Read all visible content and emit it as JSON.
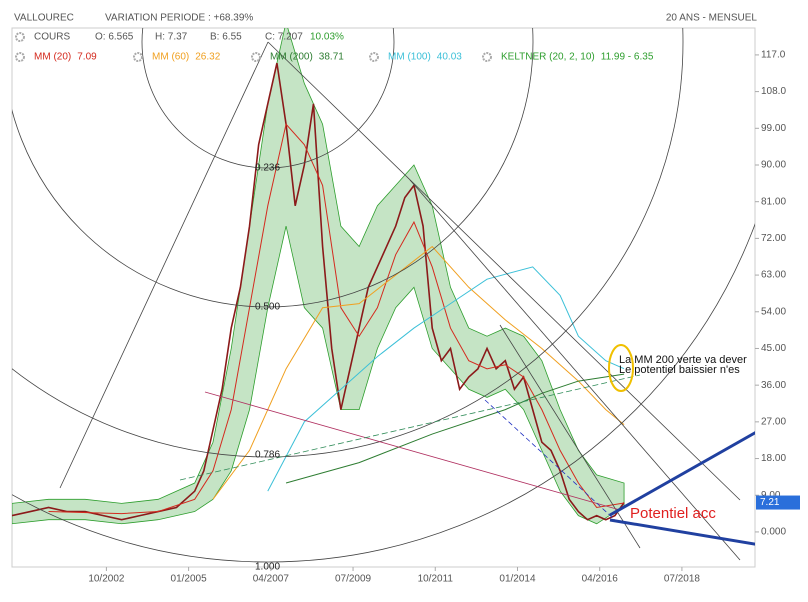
{
  "chart_data": {
    "type": "line",
    "title": "VALLOUREC",
    "subtitle": "VARIATION PERIODE : +68.39%",
    "period": "20 ANS - MENSUEL",
    "quote": [
      "O: 6.565",
      "H: 7.37",
      "B: 6.55",
      "C: 7.207",
      "10.03%"
    ],
    "fib_labels": [
      "0.236",
      "0.500",
      "0.786",
      "1.000"
    ],
    "annotations": [
      "La MM 200 verte va dever",
      "Le potentiel baissier n'es",
      "Potentiel acc"
    ],
    "xlim": [
      "03/2000",
      "07/2020"
    ],
    "xticks": [
      "10/2002",
      "01/2005",
      "04/2007",
      "07/2009",
      "10/2011",
      "01/2014",
      "04/2016",
      "07/2018"
    ],
    "ylim": [
      -8.6,
      123.6
    ],
    "yticks": [
      {
        "value": 0,
        "label": "0.000"
      },
      {
        "value": 9,
        "label": "9.00"
      },
      {
        "value": 18,
        "label": "18.00"
      },
      {
        "value": 27,
        "label": "27.00"
      },
      {
        "value": 36,
        "label": "36.00"
      },
      {
        "value": 45,
        "label": "45.00"
      },
      {
        "value": 54,
        "label": "54.00"
      },
      {
        "value": 63,
        "label": "63.00"
      },
      {
        "value": 72,
        "label": "72.00"
      },
      {
        "value": 81,
        "label": "81.00"
      },
      {
        "value": 90,
        "label": "90.00"
      },
      {
        "value": 99,
        "label": "99.00"
      },
      {
        "value": 108,
        "label": "108.0"
      },
      {
        "value": 117,
        "label": "117.0"
      }
    ],
    "keltner": {
      "name": "KELTNER (20, 2, 10)",
      "legend_value": "11.99 - 6.35",
      "color": "#2e9e2e",
      "x": [
        "03/2000",
        "03/2001",
        "03/2002",
        "03/2003",
        "03/2004",
        "03/2005",
        "09/2005",
        "03/2006",
        "09/2006",
        "03/2007",
        "09/2007",
        "03/2008",
        "09/2008",
        "03/2009",
        "09/2009",
        "03/2010",
        "09/2010",
        "03/2011",
        "09/2011",
        "03/2012",
        "09/2012",
        "03/2013",
        "09/2013",
        "03/2014",
        "09/2014",
        "03/2015",
        "09/2015",
        "03/2016",
        "12/2016"
      ],
      "upper": [
        7,
        8,
        8,
        7,
        8,
        12,
        22,
        45,
        75,
        105,
        125,
        110,
        100,
        75,
        70,
        80,
        85,
        90,
        80,
        60,
        50,
        48,
        50,
        48,
        42,
        30,
        20,
        14,
        11.99
      ],
      "lower": [
        2,
        3,
        3,
        2,
        3,
        5,
        8,
        15,
        30,
        55,
        75,
        55,
        50,
        30,
        30,
        45,
        55,
        60,
        45,
        40,
        35,
        33,
        35,
        30,
        20,
        10,
        4,
        2,
        6.35
      ]
    },
    "series": [
      {
        "name": "COURS",
        "color": "#8b1a1a",
        "x": [
          "03/2000",
          "09/2000",
          "03/2001",
          "09/2001",
          "03/2002",
          "09/2002",
          "03/2003",
          "09/2003",
          "03/2004",
          "09/2004",
          "03/2005",
          "06/2005",
          "09/2005",
          "12/2005",
          "03/2006",
          "06/2006",
          "09/2006",
          "12/2006",
          "03/2007",
          "06/2007",
          "09/2007",
          "12/2007",
          "03/2008",
          "06/2008",
          "09/2008",
          "12/2008",
          "03/2009",
          "06/2009",
          "09/2009",
          "12/2009",
          "03/2010",
          "06/2010",
          "09/2010",
          "12/2010",
          "03/2011",
          "06/2011",
          "09/2011",
          "12/2011",
          "03/2012",
          "06/2012",
          "09/2012",
          "12/2012",
          "03/2013",
          "06/2013",
          "09/2013",
          "12/2013",
          "03/2014",
          "06/2014",
          "09/2014",
          "12/2014",
          "03/2015",
          "06/2015",
          "09/2015",
          "12/2015",
          "03/2016",
          "06/2016",
          "09/2016",
          "12/2016"
        ],
        "values": [
          4,
          5,
          6,
          5,
          5,
          4,
          3,
          4,
          5,
          6,
          10,
          15,
          25,
          35,
          50,
          60,
          75,
          95,
          105,
          115,
          100,
          80,
          90,
          105,
          70,
          45,
          30,
          40,
          50,
          60,
          65,
          70,
          75,
          82,
          85,
          75,
          50,
          42,
          45,
          35,
          38,
          40,
          45,
          40,
          42,
          35,
          38,
          30,
          22,
          20,
          15,
          8,
          5,
          3,
          4,
          3,
          4,
          7.21
        ]
      },
      {
        "name": "MM (20)",
        "legend_value": "7.09",
        "color": "#d42a1e",
        "x": [
          "03/2001",
          "03/2003",
          "03/2004",
          "03/2005",
          "09/2005",
          "03/2006",
          "09/2006",
          "03/2007",
          "09/2007",
          "03/2008",
          "09/2008",
          "03/2009",
          "09/2009",
          "03/2010",
          "09/2010",
          "03/2011",
          "09/2011",
          "03/2012",
          "09/2012",
          "03/2013",
          "09/2013",
          "03/2014",
          "09/2014",
          "03/2015",
          "09/2015",
          "03/2016",
          "12/2016"
        ],
        "values": [
          5,
          4.5,
          5,
          8,
          15,
          30,
          55,
          80,
          100,
          95,
          85,
          55,
          48,
          55,
          68,
          76,
          65,
          50,
          42,
          40,
          41,
          38,
          30,
          20,
          12,
          6,
          7.09
        ]
      },
      {
        "name": "MM (60)",
        "legend_value": "26.32",
        "color": "#f0a020",
        "x": [
          "09/2005",
          "09/2006",
          "09/2007",
          "09/2008",
          "09/2009",
          "09/2010",
          "09/2011",
          "09/2012",
          "09/2013",
          "09/2014",
          "09/2015",
          "06/2016",
          "12/2016"
        ],
        "values": [
          8,
          20,
          40,
          55,
          56,
          63,
          70,
          60,
          52,
          45,
          37,
          30,
          26.32
        ]
      },
      {
        "name": "MM (200)",
        "legend_value": "38.71",
        "color": "#2e7d32",
        "x": [
          "09/2007",
          "09/2009",
          "09/2011",
          "09/2013",
          "09/2014",
          "09/2015",
          "12/2016"
        ],
        "values": [
          12,
          17,
          24,
          30,
          34,
          37,
          38.71
        ]
      },
      {
        "name": "MM (100)",
        "legend_value": "40.03",
        "color": "#3cc0d8",
        "x": [
          "03/2007",
          "03/2008",
          "03/2009",
          "03/2010",
          "03/2011",
          "03/2012",
          "03/2013",
          "06/2014",
          "03/2015",
          "09/2015",
          "06/2016",
          "12/2016"
        ],
        "values": [
          10,
          27,
          35,
          43,
          50,
          56,
          62,
          65,
          58,
          48,
          42,
          40.03
        ]
      }
    ]
  }
}
